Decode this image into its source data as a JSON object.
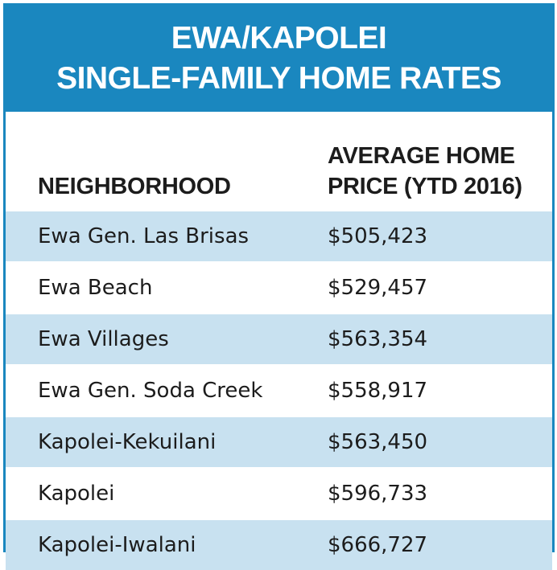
{
  "title": {
    "line1": "EWA/KAPOLEI",
    "line2": "SINGLE-FAMILY HOME RATES"
  },
  "colors": {
    "header_bg": "#1a87bf",
    "row_shade": "#c8e1f0"
  },
  "chart_data": {
    "type": "table",
    "title": "EWA/KAPOLEI SINGLE-FAMILY HOME RATES",
    "columns": [
      "NEIGHBORHOOD",
      "AVERAGE HOME PRICE (YTD 2016)"
    ],
    "column_lines": [
      [
        "NEIGHBORHOOD"
      ],
      [
        "AVERAGE HOME",
        "PRICE (YTD 2016)"
      ]
    ],
    "rows": [
      {
        "neighborhood": "Ewa Gen. Las Brisas",
        "price": "$505,423"
      },
      {
        "neighborhood": "Ewa Beach",
        "price": "$529,457"
      },
      {
        "neighborhood": "Ewa Villages",
        "price": "$563,354"
      },
      {
        "neighborhood": "Ewa Gen. Soda Creek",
        "price": "$558,917"
      },
      {
        "neighborhood": "Kapolei-Kekuilani",
        "price": "$563,450"
      },
      {
        "neighborhood": "Kapolei",
        "price": "$596,733"
      },
      {
        "neighborhood": "Kapolei-Iwalani",
        "price": "$666,727"
      }
    ]
  }
}
